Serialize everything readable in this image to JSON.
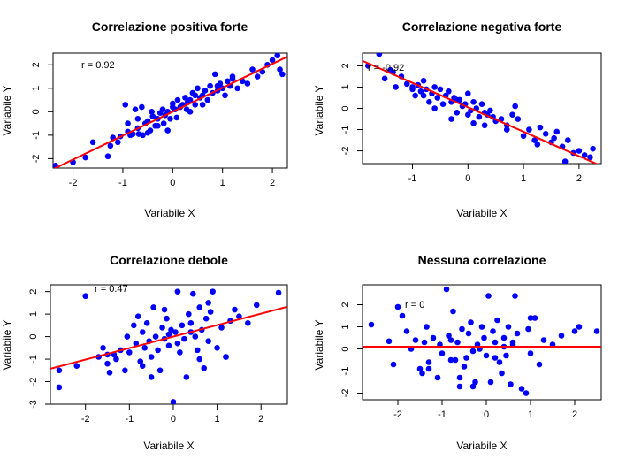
{
  "chart_data": [
    {
      "type": "scatter",
      "title": "Correlazione positiva forte",
      "xlabel": "Variabile X",
      "ylabel": "Variabile Y",
      "annotation": "r = 0.92",
      "xlim": [
        -2.4,
        2.3
      ],
      "ylim": [
        -2.4,
        2.5
      ],
      "xticks": [
        -2,
        -1,
        0,
        1,
        2
      ],
      "yticks": [
        -2,
        -1,
        0,
        1,
        2
      ],
      "xtick_labels": [
        "-2",
        "-1",
        "0",
        "1",
        "2"
      ],
      "ytick_labels": [
        "-2",
        "-1",
        "0",
        "1",
        "2"
      ],
      "point_color": "#0000ff",
      "line_color": "#ff0000",
      "regression_line": {
        "intercept": 0.0,
        "slope": 1.02
      },
      "x": [
        -2.35,
        -2.0,
        -1.75,
        -1.6,
        -1.3,
        -1.25,
        -1.2,
        -1.1,
        -1.05,
        -0.95,
        -0.9,
        -0.85,
        -0.8,
        -0.75,
        -0.7,
        -0.68,
        -0.62,
        -0.6,
        -0.55,
        -0.5,
        -0.45,
        -0.42,
        -0.4,
        -0.35,
        -0.3,
        -0.25,
        -0.2,
        -0.18,
        -0.15,
        -0.1,
        -0.05,
        0.0,
        0.05,
        0.08,
        0.1,
        0.15,
        0.2,
        0.25,
        0.28,
        0.3,
        0.35,
        0.4,
        0.45,
        0.5,
        0.55,
        0.6,
        0.65,
        0.7,
        0.75,
        0.8,
        0.85,
        0.9,
        0.95,
        1.0,
        1.05,
        1.1,
        1.15,
        1.2,
        1.3,
        1.4,
        1.5,
        1.6,
        1.7,
        1.8,
        1.9,
        2.0,
        2.1,
        2.2,
        2.15,
        -0.5,
        -0.3,
        0.0,
        0.35,
        0.6,
        -0.9,
        1.2,
        -0.1,
        0.45,
        -0.7,
        0.9
      ],
      "y": [
        -2.3,
        -2.15,
        -1.95,
        -1.3,
        -1.9,
        -1.45,
        -1.1,
        -1.3,
        -1.05,
        0.3,
        -0.85,
        -1.0,
        -0.95,
        0.1,
        -0.7,
        -0.95,
        0.2,
        -1.0,
        -0.5,
        -0.4,
        -0.8,
        0.0,
        -0.2,
        -0.6,
        -0.3,
        -0.05,
        0.1,
        -0.5,
        -0.15,
        0.0,
        -0.3,
        0.35,
        0.1,
        -0.25,
        0.5,
        0.2,
        0.3,
        0.6,
        0.1,
        0.4,
        0.5,
        0.8,
        0.7,
        1.0,
        0.6,
        0.3,
        0.9,
        0.5,
        1.1,
        0.8,
        1.6,
        0.9,
        1.2,
        1.0,
        0.7,
        1.3,
        1.1,
        1.5,
        1.0,
        1.3,
        1.2,
        1.8,
        1.5,
        1.7,
        2.0,
        2.2,
        2.4,
        1.6,
        1.8,
        -0.9,
        -0.6,
        0.2,
        0.0,
        0.7,
        -0.5,
        1.4,
        -0.8,
        0.3,
        -0.3,
        1.1
      ]
    },
    {
      "type": "scatter",
      "title": "Correlazione negativa forte",
      "xlabel": "Variabile X",
      "ylabel": "Variabile Y",
      "annotation": "r = -0.92",
      "xlim": [
        -1.9,
        2.4
      ],
      "ylim": [
        -2.6,
        2.6
      ],
      "xticks": [
        -1,
        0,
        1,
        2
      ],
      "yticks": [
        -2,
        -1,
        0,
        1,
        2
      ],
      "xtick_labels": [
        "-1",
        "0",
        "1",
        "2"
      ],
      "ytick_labels": [
        "-2",
        "-1",
        "0",
        "1",
        "2"
      ],
      "point_color": "#0000ff",
      "line_color": "#ff0000",
      "regression_line": {
        "intercept": 0.05,
        "slope": -1.15
      },
      "x": [
        -1.8,
        -1.6,
        -1.5,
        -1.4,
        -1.35,
        -1.3,
        -1.2,
        -1.1,
        -1.0,
        -0.95,
        -0.9,
        -0.85,
        -0.8,
        -0.75,
        -0.7,
        -0.65,
        -0.6,
        -0.55,
        -0.5,
        -0.45,
        -0.4,
        -0.35,
        -0.3,
        -0.25,
        -0.2,
        -0.15,
        -0.1,
        -0.05,
        0.0,
        0.05,
        0.1,
        0.15,
        0.2,
        0.25,
        0.3,
        0.35,
        0.4,
        0.5,
        0.6,
        0.7,
        0.8,
        0.9,
        1.0,
        1.1,
        1.2,
        1.3,
        1.4,
        1.5,
        1.6,
        1.7,
        1.8,
        1.9,
        2.0,
        2.1,
        2.2,
        2.25,
        -0.6,
        -0.3,
        0.1,
        0.45,
        0.85,
        1.25,
        1.75,
        -1.0,
        -0.2,
        0.3,
        0.7,
        -0.8,
        0.0,
        1.55
      ],
      "y": [
        2.0,
        2.55,
        1.4,
        1.8,
        1.7,
        1.0,
        1.5,
        1.15,
        1.0,
        0.6,
        1.1,
        0.8,
        1.3,
        0.9,
        0.3,
        0.7,
        1.0,
        0.5,
        0.9,
        0.2,
        0.6,
        0.8,
        0.3,
        0.5,
        -0.2,
        0.4,
        0.1,
        0.2,
        0.7,
        -0.1,
        0.3,
        0.0,
        -0.4,
        0.2,
        -0.2,
        -0.3,
        -0.1,
        -0.6,
        -0.5,
        -0.8,
        -0.3,
        -0.5,
        -1.3,
        -1.0,
        -1.5,
        -0.9,
        -1.2,
        -1.6,
        -1.1,
        -1.8,
        -1.5,
        -2.1,
        -2.0,
        -2.2,
        -2.3,
        -1.9,
        0.0,
        -0.5,
        -0.7,
        -0.4,
        0.1,
        -1.7,
        -2.5,
        0.9,
        0.4,
        -0.8,
        -1.0,
        0.6,
        -0.3,
        -1.4
      ]
    },
    {
      "type": "scatter",
      "title": "Correlazione debole",
      "xlabel": "Variabile X",
      "ylabel": "Variabile Y",
      "annotation": "r = 0.47",
      "xlim": [
        -2.8,
        2.6
      ],
      "ylim": [
        -3.0,
        2.3
      ],
      "xticks": [
        -2,
        -1,
        0,
        1,
        2
      ],
      "yticks": [
        -3,
        -2,
        -1,
        0,
        1,
        2
      ],
      "xtick_labels": [
        "-2",
        "-1",
        "0",
        "1",
        "2"
      ],
      "ytick_labels": [
        "-3",
        "-2",
        "-1",
        "0",
        "1",
        "2"
      ],
      "point_color": "#0000ff",
      "line_color": "#ff0000",
      "regression_line": {
        "intercept": 0.0,
        "slope": 0.51
      },
      "x": [
        -2.6,
        -2.6,
        -2.2,
        -2.0,
        -1.7,
        -1.6,
        -1.5,
        -1.45,
        -1.35,
        -1.3,
        -1.2,
        -1.1,
        -1.05,
        -1.0,
        -0.9,
        -0.85,
        -0.8,
        -0.75,
        -0.7,
        -0.65,
        -0.6,
        -0.55,
        -0.5,
        -0.45,
        -0.4,
        -0.35,
        -0.3,
        -0.25,
        -0.2,
        -0.15,
        -0.1,
        -0.05,
        0.0,
        0.05,
        0.1,
        0.15,
        0.2,
        0.25,
        0.3,
        0.35,
        0.4,
        0.45,
        0.5,
        0.55,
        0.6,
        0.65,
        0.7,
        0.75,
        0.8,
        0.85,
        0.9,
        1.0,
        1.1,
        1.2,
        1.3,
        1.4,
        1.5,
        1.7,
        1.9,
        2.4,
        -0.7,
        -0.2,
        0.1,
        0.4,
        0.8,
        -1.5,
        -0.5,
        0.6,
        1.2,
        -0.1
      ],
      "y": [
        -1.5,
        -2.25,
        -1.3,
        1.8,
        -0.9,
        -0.5,
        -1.2,
        -1.6,
        -0.8,
        -1.0,
        -0.6,
        -1.5,
        0.0,
        -0.7,
        0.5,
        -0.3,
        0.9,
        -1.1,
        0.2,
        -0.5,
        0.6,
        -0.2,
        -0.9,
        1.3,
        0.0,
        -0.6,
        -1.5,
        0.4,
        -0.1,
        0.8,
        -0.4,
        0.3,
        -2.9,
        0.2,
        2.0,
        -0.7,
        0.5,
        -0.1,
        -1.8,
        1.0,
        0.2,
        1.9,
        0.0,
        -0.6,
        1.3,
        0.3,
        -1.4,
        0.8,
        -0.2,
        1.1,
        2.0,
        -0.5,
        0.4,
        -0.9,
        0.7,
        1.2,
        0.9,
        0.6,
        1.4,
        1.95,
        -1.3,
        1.2,
        -0.3,
        0.6,
        1.5,
        -0.8,
        -1.8,
        -1.0,
        -0.9,
        0.1
      ]
    },
    {
      "type": "scatter",
      "title": "Nessuna correlazione",
      "xlabel": "Variabile X",
      "ylabel": "Variabile Y",
      "annotation": "r = 0",
      "xlim": [
        -2.8,
        2.6
      ],
      "ylim": [
        -2.3,
        2.9
      ],
      "xticks": [
        -2,
        -1,
        0,
        1,
        2
      ],
      "yticks": [
        -2,
        -1,
        0,
        1,
        2
      ],
      "xtick_labels": [
        "-2",
        "-1",
        "0",
        "1",
        "2"
      ],
      "ytick_labels": [
        "-2",
        "-1",
        "0",
        "1",
        "2"
      ],
      "point_color": "#0000ff",
      "line_color": "#ff0000",
      "regression_line": {
        "intercept": 0.1,
        "slope": 0.0
      },
      "x": [
        -2.6,
        -2.2,
        -2.1,
        -2.0,
        -1.9,
        -1.8,
        -1.7,
        -1.6,
        -1.5,
        -1.45,
        -1.4,
        -1.35,
        -1.3,
        -1.2,
        -1.1,
        -1.05,
        -1.0,
        -0.9,
        -0.85,
        -0.8,
        -0.75,
        -0.7,
        -0.65,
        -0.6,
        -0.55,
        -0.5,
        -0.45,
        -0.4,
        -0.35,
        -0.3,
        -0.25,
        -0.2,
        -0.15,
        -0.1,
        -0.05,
        0.0,
        0.05,
        0.1,
        0.15,
        0.2,
        0.25,
        0.3,
        0.35,
        0.4,
        0.45,
        0.5,
        0.55,
        0.6,
        0.65,
        0.7,
        0.8,
        0.9,
        0.95,
        1.0,
        1.1,
        1.2,
        1.3,
        1.5,
        1.7,
        2.0,
        2.1,
        2.5,
        -0.8,
        -0.3,
        0.2,
        0.6,
        -1.3,
        1.0,
        -0.6,
        0.4
      ],
      "y": [
        1.1,
        0.35,
        -0.7,
        1.9,
        1.5,
        0.8,
        0.0,
        0.4,
        -0.9,
        -1.1,
        0.3,
        1.0,
        -0.6,
        0.5,
        -1.3,
        0.2,
        -0.2,
        2.7,
        0.6,
        0.4,
        1.7,
        -0.5,
        0.3,
        -1.7,
        0.9,
        -0.8,
        -0.4,
        0.7,
        1.2,
        -0.1,
        -1.5,
        0.2,
        0.0,
        1.0,
        0.5,
        -0.3,
        2.4,
        -1.5,
        0.8,
        0.3,
        1.3,
        -0.6,
        -1.1,
        0.5,
        -0.3,
        1.0,
        -1.6,
        0.2,
        2.4,
        0.7,
        -1.8,
        -2.0,
        0.9,
        -0.2,
        1.4,
        -0.7,
        0.4,
        0.2,
        0.6,
        0.8,
        1.0,
        0.8,
        -0.5,
        -1.7,
        -0.4,
        0.3,
        -0.9,
        1.4,
        -1.3,
        0.1
      ]
    }
  ]
}
